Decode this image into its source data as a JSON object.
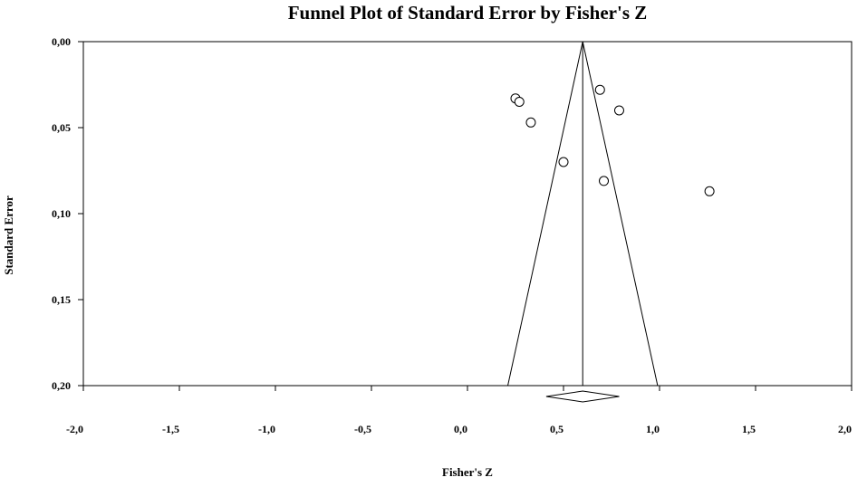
{
  "chart_data": {
    "type": "scatter",
    "title": "Funnel Plot of Standard Error by Fisher's Z",
    "xlabel": "Fisher's Z",
    "ylabel": "Standard Error",
    "xlim": [
      -2.0,
      2.0
    ],
    "ylim": [
      0.0,
      0.2
    ],
    "y_inverted": true,
    "x_ticks": [
      {
        "value": -2.0,
        "label": "-2,0"
      },
      {
        "value": -1.5,
        "label": "-1,5"
      },
      {
        "value": -1.0,
        "label": "-1,0"
      },
      {
        "value": -0.5,
        "label": "-0,5"
      },
      {
        "value": 0.0,
        "label": "0,0"
      },
      {
        "value": 0.5,
        "label": "0,5"
      },
      {
        "value": 1.0,
        "label": "1,0"
      },
      {
        "value": 1.5,
        "label": "1,5"
      },
      {
        "value": 2.0,
        "label": "2,0"
      }
    ],
    "y_ticks": [
      {
        "value": 0.0,
        "label": "0,00"
      },
      {
        "value": 0.05,
        "label": "0,05"
      },
      {
        "value": 0.1,
        "label": "0,10"
      },
      {
        "value": 0.15,
        "label": "0,15"
      },
      {
        "value": 0.2,
        "label": "0,20"
      }
    ],
    "points": [
      {
        "x": 0.25,
        "y": 0.033
      },
      {
        "x": 0.27,
        "y": 0.035
      },
      {
        "x": 0.33,
        "y": 0.047
      },
      {
        "x": 0.5,
        "y": 0.07
      },
      {
        "x": 0.69,
        "y": 0.028
      },
      {
        "x": 0.71,
        "y": 0.081
      },
      {
        "x": 0.79,
        "y": 0.04
      },
      {
        "x": 1.26,
        "y": 0.087
      }
    ],
    "pooled_estimate": 0.6,
    "funnel_limits_at_bottom": [
      0.21,
      0.99
    ],
    "summary_diamond": {
      "center": 0.6,
      "lower": 0.41,
      "upper": 0.79
    },
    "grid": false,
    "marker": "open-circle"
  }
}
